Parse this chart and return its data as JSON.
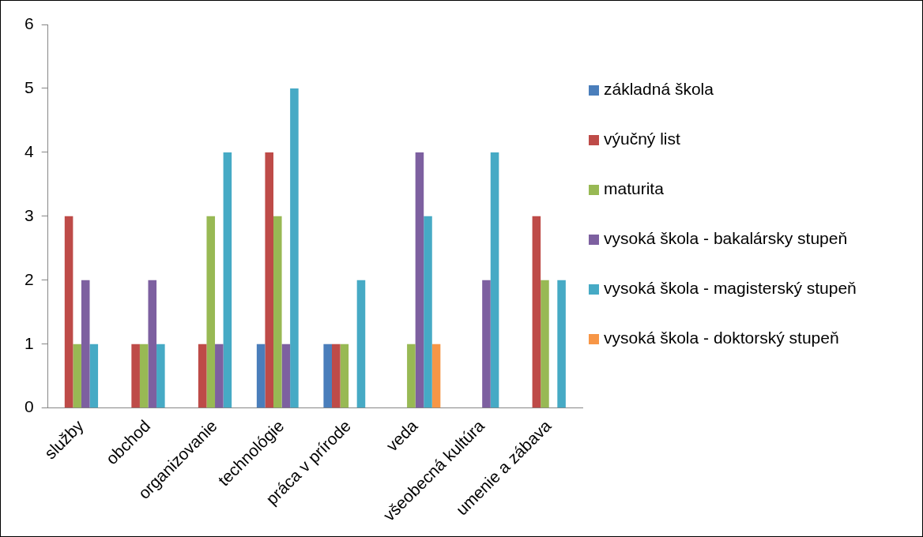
{
  "chart_data": {
    "type": "bar",
    "categories": [
      "služby",
      "obchod",
      "organizovanie",
      "technológie",
      "práca v prírode",
      "veda",
      "všeobecná kultúra",
      "umenie a zábava"
    ],
    "series": [
      {
        "name": "základná škola",
        "color": "#4a7ebb",
        "values": [
          0,
          0,
          0,
          1,
          1,
          0,
          0,
          0
        ]
      },
      {
        "name": "výučný list",
        "color": "#be4b48",
        "values": [
          3,
          1,
          1,
          4,
          1,
          0,
          0,
          3
        ]
      },
      {
        "name": "maturita",
        "color": "#98b954",
        "values": [
          1,
          1,
          3,
          3,
          1,
          1,
          0,
          2
        ]
      },
      {
        "name": "vysoká škola - bakalársky stupeň",
        "color": "#7d60a0",
        "values": [
          2,
          2,
          1,
          1,
          0,
          4,
          2,
          0
        ]
      },
      {
        "name": "vysoká škola - magisterský stupeň",
        "color": "#46aac5",
        "values": [
          1,
          1,
          4,
          5,
          2,
          3,
          4,
          2
        ]
      },
      {
        "name": "vysoká škola - doktorský stupeň",
        "color": "#f79646",
        "values": [
          0,
          0,
          0,
          0,
          0,
          1,
          0,
          0
        ]
      }
    ],
    "ylim": [
      0,
      6
    ],
    "yticks": [
      0,
      1,
      2,
      3,
      4,
      5,
      6
    ],
    "grid": false,
    "legend": "right"
  }
}
